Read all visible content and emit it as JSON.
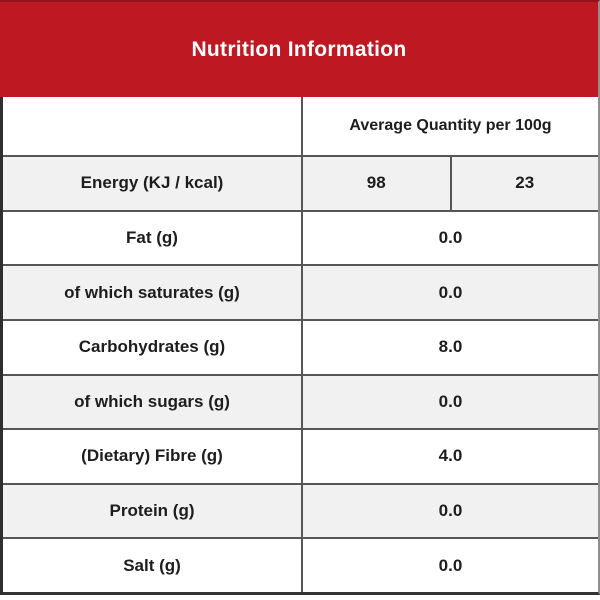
{
  "header": {
    "title": "Nutrition Information",
    "bg_color": "#be1823",
    "text_color": "#ffffff"
  },
  "table": {
    "column_header": "Average Quantity per 100g",
    "shaded_row_color": "#f1f1f1",
    "grid_color": "#565656",
    "rows": [
      {
        "label": "Energy (KJ / kcal)",
        "values": [
          "98",
          "23"
        ],
        "shaded": true
      },
      {
        "label": "Fat (g)",
        "values": [
          "0.0"
        ],
        "shaded": false
      },
      {
        "label": "of which saturates (g)",
        "values": [
          "0.0"
        ],
        "shaded": true
      },
      {
        "label": "Carbohydrates (g)",
        "values": [
          "8.0"
        ],
        "shaded": false
      },
      {
        "label": "of which sugars (g)",
        "values": [
          "0.0"
        ],
        "shaded": true
      },
      {
        "label": "(Dietary) Fibre (g)",
        "values": [
          "4.0"
        ],
        "shaded": false
      },
      {
        "label": "Protein (g)",
        "values": [
          "0.0"
        ],
        "shaded": true
      },
      {
        "label": "Salt (g)",
        "values": [
          "0.0"
        ],
        "shaded": false
      }
    ]
  }
}
